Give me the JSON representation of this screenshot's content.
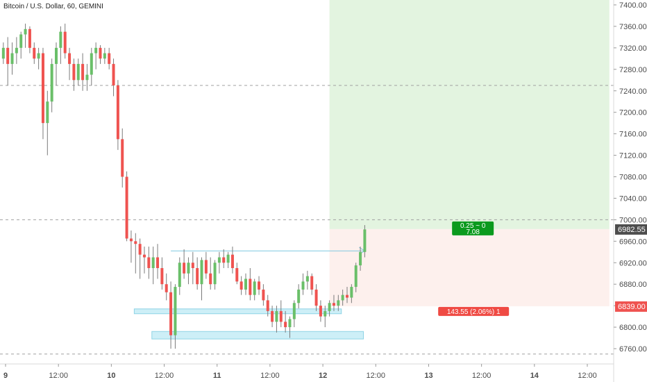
{
  "title": "Bitcoin / U.S. Dollar, 60, GEMINI",
  "chart_data": {
    "type": "candlestick",
    "symbol": "Bitcoin / U.S. Dollar",
    "interval": "60",
    "exchange": "GEMINI",
    "y_ticks": [
      6760,
      6800,
      6840,
      6880,
      6920,
      6960,
      7000,
      7040,
      7080,
      7120,
      7160,
      7200,
      7240,
      7280,
      7320,
      7360,
      7400
    ],
    "y_tick_labels": [
      "6760.00",
      "6800.00",
      "6840.00",
      "6880.00",
      "6920.00",
      "6960.00",
      "7000.00",
      "7040.00",
      "7080.00",
      "7120.00",
      "7160.00",
      "7200.00",
      "7240.00",
      "7280.00",
      "7320.00",
      "7360.00",
      "7400.00"
    ],
    "ylim": [
      6740,
      7410
    ],
    "x_ticks": [
      {
        "label": "9",
        "h": 12
      },
      {
        "label": "12:00",
        "h": 24
      },
      {
        "label": "10",
        "h": 36
      },
      {
        "label": "12:00",
        "h": 48
      },
      {
        "label": "11",
        "h": 60
      },
      {
        "label": "12:00",
        "h": 72
      },
      {
        "label": "12",
        "h": 84
      },
      {
        "label": "12:00",
        "h": 96
      },
      {
        "label": "13",
        "h": 108
      },
      {
        "label": "12:00",
        "h": 120
      },
      {
        "label": "14",
        "h": 132
      },
      {
        "label": "12:00",
        "h": 144
      }
    ],
    "xlim": [
      11.4,
      149.2
    ],
    "candles_hours_start": 11.5,
    "candles": [
      [
        7300,
        7330,
        7290,
        7320
      ],
      [
        7320,
        7340,
        7250,
        7290
      ],
      [
        7290,
        7330,
        7270,
        7310
      ],
      [
        7310,
        7340,
        7290,
        7320
      ],
      [
        7320,
        7350,
        7300,
        7345
      ],
      [
        7345,
        7365,
        7320,
        7355
      ],
      [
        7355,
        7360,
        7310,
        7320
      ],
      [
        7320,
        7330,
        7290,
        7300
      ],
      [
        7300,
        7320,
        7280,
        7310
      ],
      [
        7310,
        7320,
        7150,
        7180
      ],
      [
        7180,
        7240,
        7120,
        7220
      ],
      [
        7220,
        7300,
        7200,
        7290
      ],
      [
        7290,
        7330,
        7250,
        7320
      ],
      [
        7320,
        7360,
        7290,
        7350
      ],
      [
        7350,
        7365,
        7300,
        7310
      ],
      [
        7310,
        7320,
        7260,
        7290
      ],
      [
        7290,
        7300,
        7240,
        7260
      ],
      [
        7260,
        7300,
        7250,
        7290
      ],
      [
        7290,
        7310,
        7240,
        7260
      ],
      [
        7260,
        7290,
        7240,
        7270
      ],
      [
        7270,
        7320,
        7250,
        7310
      ],
      [
        7310,
        7330,
        7280,
        7320
      ],
      [
        7320,
        7325,
        7290,
        7300
      ],
      [
        7300,
        7320,
        7290,
        7310
      ],
      [
        7310,
        7320,
        7280,
        7290
      ],
      [
        7290,
        7300,
        7230,
        7250
      ],
      [
        7250,
        7260,
        7130,
        7150
      ],
      [
        7150,
        7170,
        7060,
        7080
      ],
      [
        7080,
        7090,
        6960,
        6965
      ],
      [
        6965,
        6980,
        6920,
        6960
      ],
      [
        6960,
        6975,
        6900,
        6955
      ],
      [
        6955,
        6965,
        6890,
        6935
      ],
      [
        6935,
        6950,
        6900,
        6930
      ],
      [
        6930,
        6950,
        6890,
        6910
      ],
      [
        6910,
        6950,
        6880,
        6930
      ],
      [
        6930,
        6955,
        6890,
        6910
      ],
      [
        6910,
        6930,
        6870,
        6880
      ],
      [
        6880,
        6900,
        6850,
        6865
      ],
      [
        6865,
        6885,
        6760,
        6785
      ],
      [
        6785,
        6880,
        6760,
        6875
      ],
      [
        6875,
        6930,
        6860,
        6920
      ],
      [
        6920,
        6945,
        6890,
        6900
      ],
      [
        6900,
        6930,
        6880,
        6920
      ],
      [
        6920,
        6940,
        6880,
        6910
      ],
      [
        6910,
        6930,
        6870,
        6880
      ],
      [
        6880,
        6930,
        6850,
        6925
      ],
      [
        6925,
        6940,
        6890,
        6900
      ],
      [
        6900,
        6930,
        6870,
        6880
      ],
      [
        6880,
        6925,
        6870,
        6920
      ],
      [
        6920,
        6940,
        6900,
        6930
      ],
      [
        6930,
        6945,
        6910,
        6920
      ],
      [
        6920,
        6940,
        6910,
        6935
      ],
      [
        6935,
        6950,
        6900,
        6910
      ],
      [
        6910,
        6920,
        6880,
        6885
      ],
      [
        6885,
        6895,
        6860,
        6870
      ],
      [
        6870,
        6900,
        6860,
        6890
      ],
      [
        6890,
        6910,
        6850,
        6860
      ],
      [
        6860,
        6890,
        6850,
        6885
      ],
      [
        6885,
        6895,
        6860,
        6870
      ],
      [
        6870,
        6880,
        6840,
        6850
      ],
      [
        6850,
        6860,
        6820,
        6830
      ],
      [
        6830,
        6840,
        6800,
        6810
      ],
      [
        6810,
        6840,
        6790,
        6830
      ],
      [
        6830,
        6850,
        6800,
        6810
      ],
      [
        6810,
        6830,
        6790,
        6800
      ],
      [
        6800,
        6820,
        6780,
        6815
      ],
      [
        6815,
        6850,
        6800,
        6845
      ],
      [
        6845,
        6880,
        6835,
        6870
      ],
      [
        6870,
        6900,
        6860,
        6885
      ],
      [
        6885,
        6905,
        6870,
        6895
      ],
      [
        6895,
        6900,
        6860,
        6870
      ],
      [
        6870,
        6880,
        6830,
        6840
      ],
      [
        6840,
        6850,
        6810,
        6820
      ],
      [
        6820,
        6840,
        6800,
        6830
      ],
      [
        6830,
        6850,
        6820,
        6845
      ],
      [
        6845,
        6860,
        6830,
        6840
      ],
      [
        6840,
        6860,
        6830,
        6850
      ],
      [
        6850,
        6870,
        6840,
        6860
      ],
      [
        6860,
        6875,
        6845,
        6855
      ],
      [
        6855,
        6880,
        6845,
        6875
      ],
      [
        6875,
        6920,
        6865,
        6915
      ],
      [
        6915,
        6950,
        6905,
        6940
      ],
      [
        6940,
        6990,
        6930,
        6982
      ]
    ],
    "horizontal_levels": [
      7250,
      7000,
      6750
    ],
    "zones": [
      {
        "x_from": 41.2,
        "x_to": 88.2,
        "y_from": 6825,
        "y_to": 6834
      },
      {
        "x_from": 45.2,
        "x_to": 93.2,
        "y_from": 6778,
        "y_to": 6792
      }
    ],
    "arrow_line": {
      "x_from": 49.5,
      "x_to": 93.5,
      "y": 6942
    },
    "position": {
      "x_from": 85.5,
      "x_to": 149,
      "entry": 6982.55,
      "target": 7410,
      "stop": 6839,
      "target_badge": [
        "0.25 ~ 0",
        "7.08"
      ],
      "stop_badge": "143.55 (2.06%) 1"
    },
    "price_labels": [
      {
        "label": "6982.55",
        "value": 6982.55,
        "color": "#4d4d4d"
      },
      {
        "label": "6839.00",
        "value": 6839,
        "color": "#ef5350"
      }
    ],
    "colors": {
      "up": "#6abf69",
      "down": "#ef5350",
      "zone": "#cdeff7",
      "zone_border": "#8fd3e6",
      "target_fill": "#e3f4e0",
      "stop_fill": "#fdf0ed",
      "target_badge": "#0b9a1e",
      "stop_badge": "#ef4a43",
      "arrow": "#7fc8e0",
      "grid": "#a0a0a0"
    }
  }
}
